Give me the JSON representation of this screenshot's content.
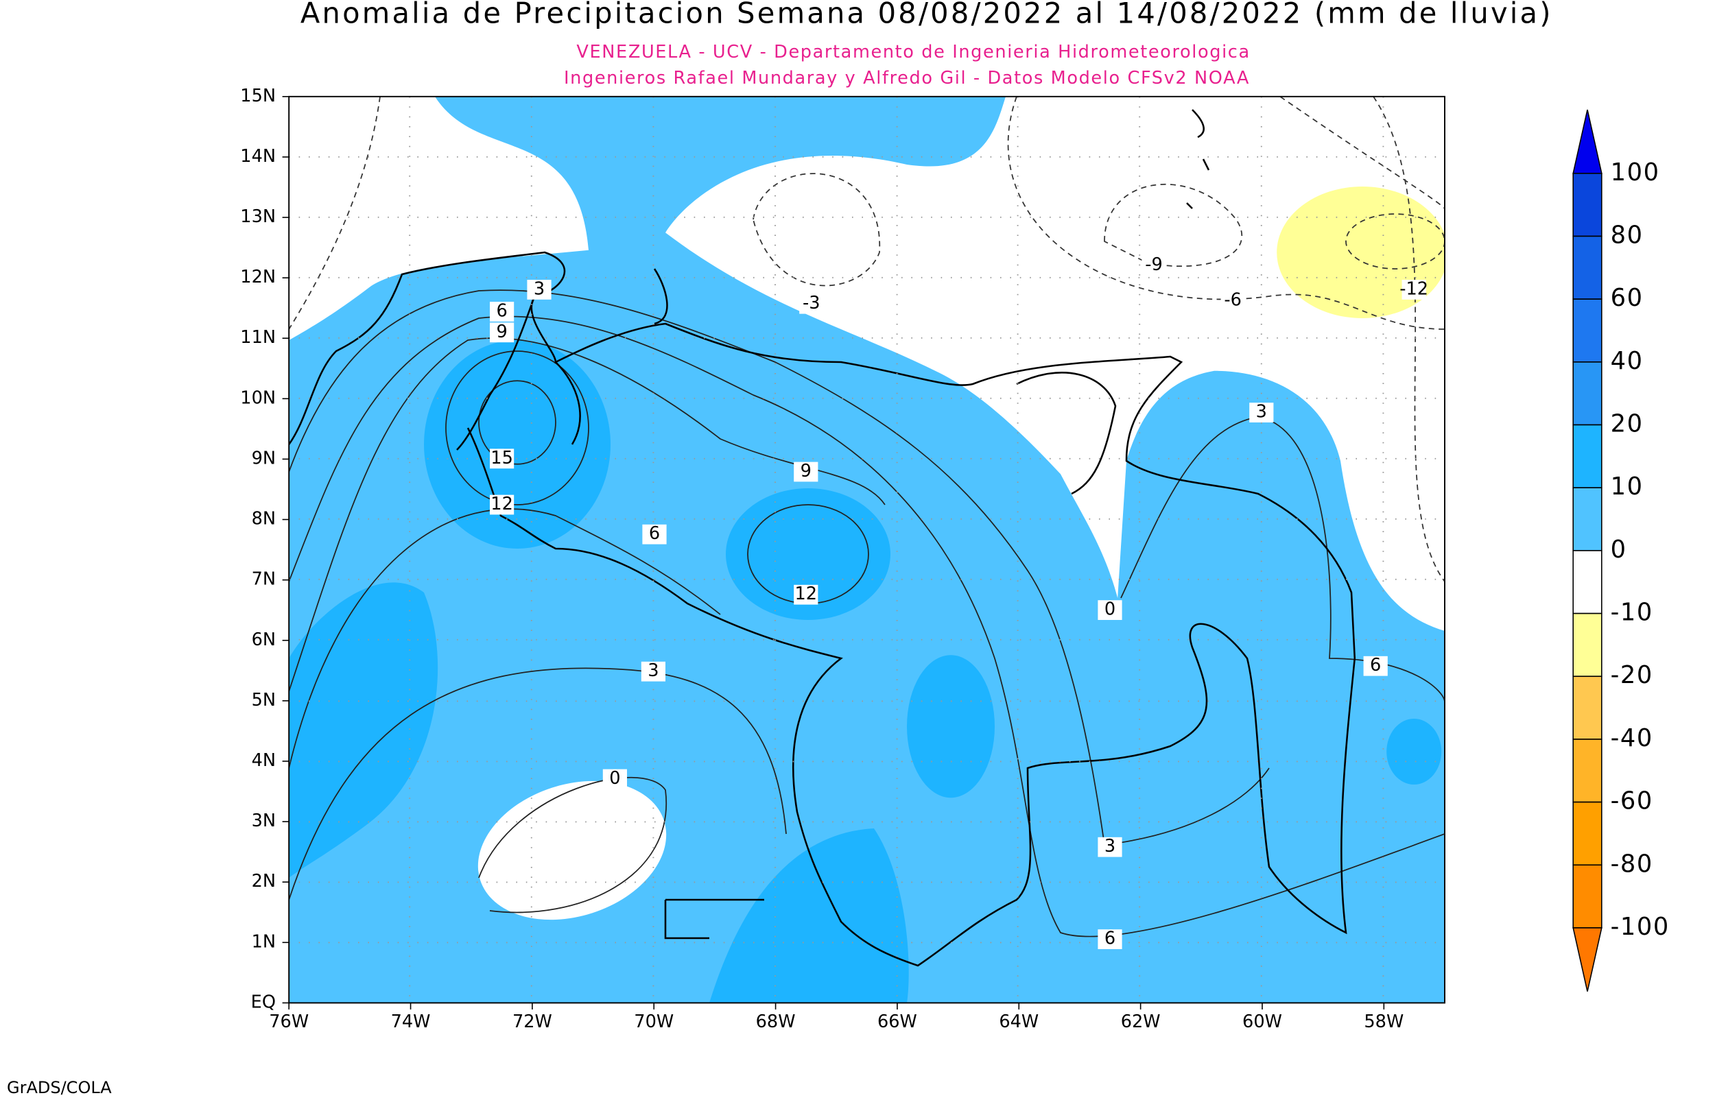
{
  "title": "Anomalia de Precipitacion Semana 08/08/2022 al 14/08/2022 (mm de lluvia)",
  "subtitle_lines": [
    "VENEZUELA - UCV - Departamento de Ingenieria Hidrometeorologica",
    "Ingenieros Rafael Mundaray y Alfredo Gil - Datos Modelo CFSv2 NOAA"
  ],
  "lat_labels": [
    "15N",
    "14N",
    "13N",
    "12N",
    "11N",
    "10N",
    "9N",
    "8N",
    "7N",
    "6N",
    "5N",
    "4N",
    "3N",
    "2N",
    "1N",
    "EQ"
  ],
  "lon_labels": [
    "76W",
    "74W",
    "72W",
    "70W",
    "68W",
    "66W",
    "64W",
    "62W",
    "60W",
    "58W"
  ],
  "colorbar": {
    "levels": [
      100,
      80,
      60,
      40,
      20,
      10,
      0,
      -10,
      -20,
      -40,
      -60,
      -80,
      -100
    ],
    "colors": [
      "#0000ee",
      "#0a46dc",
      "#1462e6",
      "#1e78f0",
      "#2896f5",
      "#1eb4ff",
      "#50c3ff",
      "#ffffff",
      "#ffff96",
      "#ffc850",
      "#ffb428",
      "#ffa000",
      "#ff8c00",
      "#ff7800"
    ]
  },
  "contour_labels": [
    3,
    6,
    9,
    15,
    12,
    9,
    6,
    12,
    3,
    0,
    0,
    3,
    6,
    3,
    6,
    -3,
    -9,
    -6,
    -12
  ],
  "footer": "GrADS/COLA"
}
